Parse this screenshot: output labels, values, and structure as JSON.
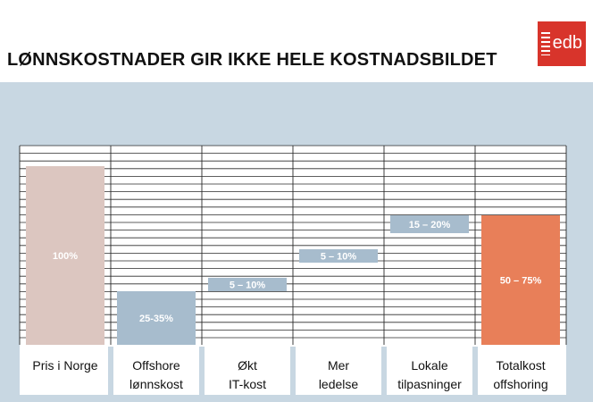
{
  "title": "LØNNSKOSTNADER GIR IKKE HELE KOSTNADSBILDET",
  "logo_text": "edb",
  "colors": {
    "band": "#c8d7e2",
    "plot_bg": "#ffffff",
    "bar_price": "#dcc6c0",
    "bar_blue": "#a7bccd",
    "bar_total": "#e87f59",
    "logo": "#d8342b"
  },
  "chart_data": {
    "type": "bar",
    "categories": [
      [
        "Pris i Norge"
      ],
      [
        "Offshore",
        "lønnskost"
      ],
      [
        "Økt",
        "IT-kost"
      ],
      [
        "Mer",
        "ledelse"
      ],
      [
        "Lokale",
        "tilpasninger"
      ],
      [
        "Totalkost",
        "offshoring"
      ]
    ],
    "bars": [
      {
        "category": "Pris i Norge",
        "low": 0,
        "high": 100,
        "label": "100%",
        "color": "#dcc6c0"
      },
      {
        "category": "Offshore lønnskost",
        "low": 0,
        "high": 30,
        "label": "25-35%",
        "color": "#a7bccd"
      },
      {
        "category": "Økt IT-kost",
        "low": 30,
        "high": 37.5,
        "label": "5 – 10%",
        "color": "#a7bccd"
      },
      {
        "category": "Mer ledelse",
        "low": 46,
        "high": 53.5,
        "label": "5 – 10%",
        "color": "#a7bccd"
      },
      {
        "category": "Lokale tilpasninger",
        "low": 62.5,
        "high": 72.5,
        "label": "15 – 20%",
        "color": "#a7bccd"
      },
      {
        "category": "Totalkost offshoring",
        "low": 0,
        "high": 72.5,
        "label": "50 – 75%",
        "color": "#e87f59"
      }
    ],
    "ylim": [
      0,
      100
    ],
    "grid": true,
    "legend": "none"
  }
}
